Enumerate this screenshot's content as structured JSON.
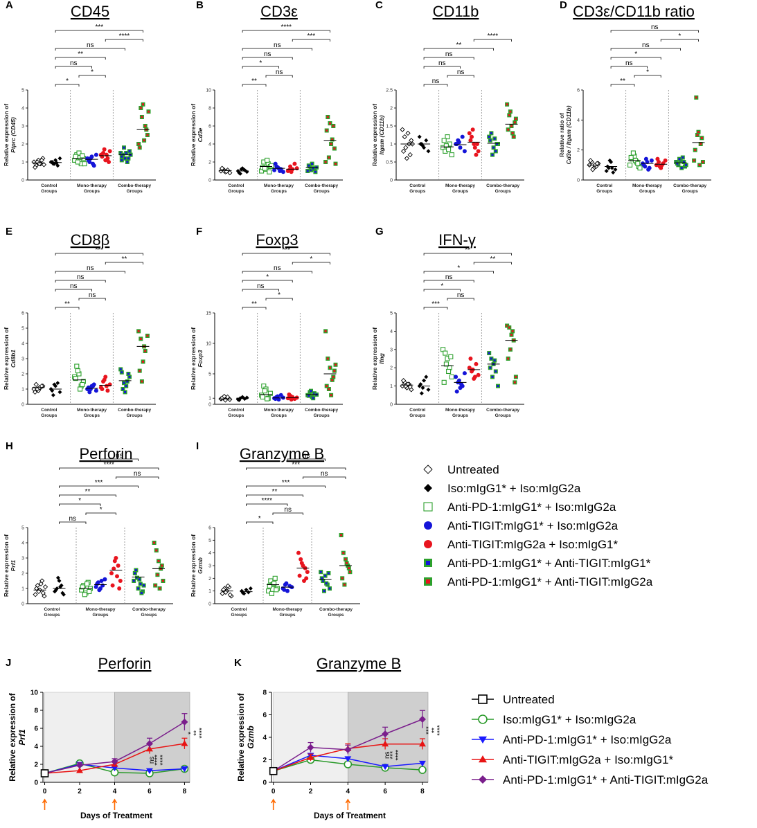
{
  "groups": [
    "Control Groups",
    "Mono-therapy Groups",
    "Combo-therapy Groups"
  ],
  "colors": {
    "untreated": "#000000",
    "iso": "#000000",
    "pd1": "#2ca02c",
    "tigitG1": "#1414d8",
    "tigitG2a": "#e8141e",
    "comboFill": "#2ca02c",
    "tcPd1": "#1a1aff",
    "tcTigit": "#e81414",
    "tcCombo": "#7a1e8c",
    "tcIso": "#2a9a2a"
  },
  "legend_scatter": [
    {
      "label": "Untreated",
      "icon": "open-diamond"
    },
    {
      "label": "Iso:mIgG1* + Iso:mIgG2a",
      "icon": "filled-diamond"
    },
    {
      "label": "Anti-PD-1:mIgG1* + Iso:mIgG2a",
      "icon": "open-green-square"
    },
    {
      "label": "Anti-TIGIT:mIgG1* + Iso:mIgG2a",
      "icon": "blue-circle"
    },
    {
      "label": "Anti-TIGIT:mIgG2a + Iso:mIgG1*",
      "icon": "red-circle"
    },
    {
      "label": "Anti-PD-1:mIgG1* + Anti-TIGIT:mIgG1*",
      "icon": "green-blue-square"
    },
    {
      "label": "Anti-PD-1:mIgG1* + Anti-TIGIT:mIgG2a",
      "icon": "green-red-square"
    }
  ],
  "legend_timecourse": [
    {
      "label": "Untreated",
      "icon": "open-square"
    },
    {
      "label": "Iso:mIgG1* + Iso:mIgG2a",
      "icon": "open-circle"
    },
    {
      "label": "Anti-PD-1:mIgG1* + Iso:mIgG2a",
      "icon": "down-triangle"
    },
    {
      "label": "Anti-TIGIT:mIgG2a + Iso:mIgG1*",
      "icon": "up-triangle"
    },
    {
      "label": "Anti-PD-1:mIgG1* + Anti-TIGIT:mIgG2a",
      "icon": "diamond"
    }
  ],
  "chart_data": [
    {
      "id": "A",
      "type": "scatter",
      "title": "CD45",
      "ylabel": [
        "Relative expression of",
        "Ptprc (CD45)"
      ],
      "ylim": [
        0,
        5
      ],
      "yticks": [
        0,
        1,
        2,
        3,
        4,
        5
      ],
      "means": [
        0.95,
        0.97,
        1.2,
        1.15,
        1.35,
        1.4,
        2.8
      ],
      "values": [
        [
          1.0,
          0.8,
          1.1,
          0.9,
          1.2,
          0.7,
          1.0,
          0.9,
          1.1,
          0.85
        ],
        [
          1.0,
          0.9,
          1.1,
          0.8,
          1.2,
          1.0,
          0.9,
          0.95
        ],
        [
          1.1,
          1.4,
          1.5,
          0.9,
          1.2,
          1.3,
          1.0,
          1.25,
          1.35,
          0.9
        ],
        [
          1.2,
          1.0,
          1.3,
          0.8,
          1.4,
          1.1,
          1.2,
          0.9
        ],
        [
          1.4,
          1.5,
          1.1,
          1.2,
          1.6,
          1.3,
          1.7,
          1.4,
          1.0
        ],
        [
          1.5,
          1.4,
          1.2,
          1.0,
          1.6,
          1.3,
          1.8,
          1.5,
          1.2,
          1.4,
          1.1
        ],
        [
          2.0,
          4.0,
          4.2,
          3.0,
          2.5,
          1.8,
          3.5,
          2.2,
          2.8,
          3.8
        ]
      ],
      "sig": [
        "*",
        "*",
        "ns",
        "**",
        "ns",
        "****",
        "***"
      ]
    },
    {
      "id": "B",
      "type": "scatter",
      "title": "CD3ε",
      "ylabel": [
        "Relative expression of",
        "Cd3e"
      ],
      "ylim": [
        0,
        10
      ],
      "yticks": [
        0,
        2,
        4,
        6,
        8,
        10
      ],
      "means": [
        1.05,
        1.0,
        1.5,
        1.3,
        1.2,
        1.4,
        4.4
      ],
      "values": [
        [
          1.0,
          1.2,
          0.9,
          1.1,
          0.8,
          1.3,
          1.0,
          0.95
        ],
        [
          1.0,
          0.7,
          1.3,
          1.1,
          0.9,
          0.8,
          1.2
        ],
        [
          1.0,
          2.0,
          1.2,
          1.8,
          1.5,
          1.4,
          1.3,
          2.2,
          0.9,
          1.6
        ],
        [
          1.1,
          1.5,
          1.3,
          1.2,
          0.9,
          1.8,
          1.4,
          1.0
        ],
        [
          1.0,
          1.5,
          1.2,
          1.8,
          1.3,
          1.1,
          0.9
        ],
        [
          1.0,
          1.5,
          1.8,
          1.2,
          1.4,
          1.6,
          1.1,
          1.3,
          0.9
        ],
        [
          2.0,
          7.0,
          6.3,
          4.5,
          3.5,
          5.5,
          2.5,
          4.0,
          6.0,
          1.8
        ]
      ],
      "sig": [
        "**",
        "ns",
        "*",
        "ns",
        "ns",
        "***",
        "****"
      ]
    },
    {
      "id": "C",
      "type": "scatter",
      "title": "CD11b",
      "ylabel": [
        "Relative expression of",
        "Itgam (CD11b)"
      ],
      "ylim": [
        0,
        2.5
      ],
      "yticks": [
        0,
        0.5,
        1.0,
        1.5,
        2.0,
        2.5
      ],
      "means": [
        1.0,
        1.0,
        0.92,
        0.98,
        1.05,
        1.02,
        1.55
      ],
      "values": [
        [
          1.4,
          1.2,
          0.6,
          1.0,
          1.1,
          0.8,
          0.9,
          1.3,
          0.7,
          1.0
        ],
        [
          1.2,
          1.0,
          0.9,
          1.1,
          0.8,
          1.0,
          0.95
        ],
        [
          0.9,
          0.8,
          1.2,
          1.0,
          0.7,
          1.1,
          0.95,
          0.85
        ],
        [
          1.0,
          1.1,
          0.9,
          1.2,
          0.8,
          1.0,
          1.05
        ],
        [
          1.3,
          1.2,
          1.0,
          0.7,
          0.8,
          1.1,
          1.4,
          0.9,
          1.0
        ],
        [
          1.2,
          1.3,
          0.9,
          0.8,
          1.0,
          1.1,
          0.7,
          1.15,
          1.0
        ],
        [
          2.1,
          1.8,
          1.5,
          1.2,
          1.7,
          1.4,
          1.9,
          1.3,
          1.6
        ]
      ],
      "sig": [
        "ns",
        "ns",
        "ns",
        "ns",
        "**",
        "****"
      ]
    },
    {
      "id": "D",
      "type": "scatter",
      "title": "CD3ε/CD11b ratio",
      "ylabel": [
        "Relative ratio of",
        "Cd3e / Itgam (CD11b)"
      ],
      "ylim": [
        0,
        6
      ],
      "yticks": [
        0,
        2,
        4,
        6
      ],
      "means": [
        1.0,
        0.9,
        1.3,
        1.1,
        1.05,
        1.15,
        2.5
      ],
      "values": [
        [
          1.0,
          1.2,
          0.8,
          0.9,
          1.1,
          1.3,
          0.7,
          1.0,
          1.1
        ],
        [
          0.6,
          0.8,
          1.2,
          0.5,
          0.7,
          0.9,
          1.3,
          0.8
        ],
        [
          1.0,
          1.4,
          1.6,
          1.2,
          0.9,
          1.5,
          1.8,
          1.3,
          1.1,
          0.8
        ],
        [
          1.1,
          0.9,
          1.2,
          0.8,
          1.3,
          1.0,
          1.4,
          0.7
        ],
        [
          1.0,
          1.2,
          0.8,
          1.1,
          1.3,
          1.4,
          0.9,
          1.0
        ],
        [
          1.2,
          1.0,
          1.3,
          1.5,
          0.9,
          1.1,
          1.4,
          0.8,
          1.2,
          1.0
        ],
        [
          1.3,
          5.5,
          3.2,
          2.4,
          1.2,
          2.0,
          3.0,
          1.0,
          2.8
        ]
      ],
      "sig": [
        "**",
        "*",
        "ns",
        "*",
        "ns",
        "*",
        "ns"
      ]
    },
    {
      "id": "E",
      "type": "scatter",
      "title": "CD8β",
      "ylabel": [
        "Relative expression of",
        "Cd8b1"
      ],
      "ylim": [
        0,
        6
      ],
      "yticks": [
        0,
        1,
        2,
        3,
        4,
        5,
        6
      ],
      "means": [
        1.1,
        1.0,
        1.6,
        1.05,
        1.25,
        1.55,
        3.8
      ],
      "values": [
        [
          1.0,
          1.3,
          0.9,
          1.1,
          1.2,
          0.8,
          1.0,
          1.1,
          1.2
        ],
        [
          1.0,
          0.6,
          1.2,
          1.4,
          0.8,
          0.9,
          1.3
        ],
        [
          1.8,
          2.5,
          2.0,
          1.2,
          1.5,
          1.7,
          2.2,
          1.0,
          1.3
        ],
        [
          1.0,
          0.8,
          1.2,
          1.3,
          0.9,
          1.1,
          1.0,
          1.2
        ],
        [
          1.1,
          1.5,
          1.8,
          0.9,
          1.3,
          1.0,
          1.6,
          1.2
        ],
        [
          2.3,
          1.0,
          0.8,
          1.5,
          1.8,
          2.1,
          1.4,
          1.2,
          2.0
        ],
        [
          4.8,
          4.3,
          2.8,
          3.5,
          4.5,
          2.2,
          1.5,
          3.8
        ]
      ],
      "sig": [
        "**",
        "ns",
        "ns",
        "ns",
        "ns",
        "**",
        "***"
      ]
    },
    {
      "id": "F",
      "type": "scatter",
      "title": "Foxp3",
      "ylabel": [
        "Relative expression of",
        "Foxp3"
      ],
      "ylim": [
        0,
        15
      ],
      "yticks": [
        0,
        1,
        5,
        10,
        15
      ],
      "means": [
        0.9,
        1.0,
        1.6,
        1.05,
        1.1,
        1.6,
        5.0
      ],
      "values": [
        [
          0.9,
          1.1,
          0.7,
          1.2,
          0.8,
          1.0,
          1.3
        ],
        [
          0.8,
          1.0,
          1.2,
          0.9,
          1.1,
          0.7
        ],
        [
          1.5,
          3.0,
          2.5,
          1.0,
          1.8,
          1.2,
          2.2,
          0.9
        ],
        [
          1.0,
          1.2,
          0.8,
          1.5,
          1.1,
          0.9,
          1.3
        ],
        [
          1.0,
          1.4,
          1.2,
          0.9,
          1.1,
          1.6,
          0.8
        ],
        [
          1.5,
          2.0,
          1.2,
          1.8,
          1.6,
          1.4,
          2.2,
          1.0
        ],
        [
          12.0,
          7.5,
          6.0,
          4.0,
          5.5,
          3.0,
          2.5,
          1.5,
          4.5,
          6.5
        ]
      ],
      "sig": [
        "**",
        "*",
        "ns",
        "*",
        "ns",
        "*",
        "***"
      ]
    },
    {
      "id": "G",
      "type": "scatter",
      "title": "IFN-γ",
      "ylabel": [
        "Relative expression of",
        "Ifng"
      ],
      "ylim": [
        0,
        5
      ],
      "yticks": [
        0,
        1,
        2,
        3,
        4,
        5
      ],
      "means": [
        1.05,
        1.0,
        2.1,
        1.2,
        1.9,
        2.2,
        3.5
      ],
      "values": [
        [
          1.0,
          1.2,
          0.9,
          1.1,
          0.8,
          1.3,
          1.0,
          1.1,
          0.95
        ],
        [
          1.0,
          0.6,
          1.3,
          1.5,
          0.8,
          1.1,
          0.9
        ],
        [
          3.0,
          2.8,
          2.5,
          2.0,
          1.5,
          1.2,
          2.2,
          1.8,
          2.6
        ],
        [
          1.5,
          1.2,
          0.9,
          1.0,
          1.7,
          0.7,
          1.3,
          1.1
        ],
        [
          2.0,
          1.8,
          1.4,
          2.2,
          1.6,
          2.5,
          1.9,
          1.5
        ],
        [
          2.8,
          2.5,
          2.2,
          1.8,
          1.0,
          2.0,
          1.5,
          2.4
        ],
        [
          4.3,
          4.2,
          3.8,
          3.5,
          1.5,
          2.5,
          3.0,
          4.0,
          1.2
        ]
      ],
      "sig": [
        "***",
        "ns",
        "*",
        "ns",
        "*",
        "**",
        "**"
      ]
    },
    {
      "id": "H",
      "type": "scatter",
      "title": "Perforin",
      "ylabel": [
        "Relative expression of",
        "Prf1"
      ],
      "ylim": [
        0,
        5
      ],
      "yticks": [
        0,
        1,
        2,
        3,
        4,
        5
      ],
      "means": [
        0.9,
        1.0,
        1.0,
        1.25,
        2.2,
        1.75,
        2.3
      ],
      "values": [
        [
          0.6,
          1.2,
          0.9,
          1.5,
          0.5,
          1.0,
          0.8,
          1.3,
          0.7,
          1.1
        ],
        [
          0.8,
          1.0,
          1.5,
          1.2,
          0.6,
          0.9,
          1.7,
          1.1,
          0.7
        ],
        [
          0.9,
          1.2,
          0.7,
          1.4,
          1.0,
          1.1,
          0.6,
          1.3,
          0.8
        ],
        [
          1.1,
          1.4,
          1.0,
          1.2,
          1.6,
          1.3,
          0.9,
          1.5
        ],
        [
          2.0,
          2.3,
          3.0,
          2.5,
          1.5,
          1.2,
          2.8,
          1.8,
          1.0
        ],
        [
          1.5,
          2.2,
          1.0,
          1.3,
          0.8,
          2.0,
          1.7,
          1.6,
          0.7,
          1.2
        ],
        [
          4.0,
          3.5,
          2.8,
          2.3,
          1.5,
          1.2,
          1.9,
          1.0,
          2.5
        ]
      ],
      "sig": [
        "ns",
        "*",
        "*",
        "**",
        "***",
        "ns",
        "****",
        "ns"
      ]
    },
    {
      "id": "I",
      "type": "scatter",
      "title": "Granzyme B",
      "ylabel": [
        "Relative expression of",
        "Gzmb"
      ],
      "ylim": [
        0,
        6
      ],
      "yticks": [
        0,
        1,
        2,
        3,
        4,
        5,
        6
      ],
      "means": [
        1.0,
        0.95,
        1.5,
        1.3,
        2.8,
        1.9,
        3.0
      ],
      "values": [
        [
          0.8,
          1.2,
          1.0,
          1.3,
          0.6,
          1.1,
          0.9,
          1.4,
          0.7
        ],
        [
          1.0,
          0.8,
          1.1,
          0.9,
          1.2,
          0.85
        ],
        [
          1.0,
          1.8,
          1.5,
          2.0,
          1.2,
          1.4,
          0.8,
          1.6,
          1.1
        ],
        [
          1.2,
          1.5,
          1.0,
          1.4,
          1.3,
          1.1,
          1.6
        ],
        [
          4.0,
          3.5,
          3.0,
          2.8,
          2.5,
          2.2,
          3.2,
          1.8,
          2.0
        ],
        [
          2.5,
          1.8,
          2.2,
          1.5,
          1.2,
          2.0,
          1.0,
          1.6,
          2.4
        ],
        [
          5.4,
          4.0,
          3.5,
          3.0,
          2.5,
          2.0,
          1.5,
          3.2,
          2.8
        ]
      ],
      "sig": [
        "*",
        "ns",
        "****",
        "**",
        "***",
        "ns",
        "***",
        "ns"
      ]
    },
    {
      "id": "J",
      "type": "line",
      "title": "Perforin",
      "xlabel": "Days of  Treatment",
      "ylabel": [
        "Relative expression of",
        "Prf1"
      ],
      "x": [
        0,
        2,
        4,
        6,
        8
      ],
      "ylim": [
        0,
        10
      ],
      "yticks": [
        0,
        2,
        4,
        6,
        8,
        10
      ],
      "xticks": [
        0,
        2,
        4,
        6,
        8
      ],
      "series": [
        {
          "name": "Untreated",
          "values": [
            1.0,
            null,
            null,
            null,
            null
          ]
        },
        {
          "name": "Iso:mIgG1* + Iso:mIgG2a",
          "values": [
            1.0,
            2.1,
            1.1,
            1.0,
            1.5
          ]
        },
        {
          "name": "Anti-PD-1:mIgG1* + Iso:mIgG2a",
          "values": [
            1.0,
            2.0,
            1.6,
            1.3,
            1.5
          ]
        },
        {
          "name": "Anti-TIGIT:mIgG2a + Iso:mIgG1*",
          "values": [
            1.0,
            1.3,
            2.0,
            3.7,
            4.3
          ]
        },
        {
          "name": "Anti-PD-1:mIgG1* + Anti-TIGIT:mIgG2a",
          "values": [
            1.0,
            1.9,
            2.3,
            4.3,
            6.7
          ]
        }
      ],
      "annotations": [
        "ns",
        "****",
        "****",
        "*",
        "**",
        "****"
      ]
    },
    {
      "id": "K",
      "type": "line",
      "title": "Granzyme B",
      "xlabel": "Days of  Treatment",
      "ylabel": [
        "Relative expression of",
        "Gzmb"
      ],
      "x": [
        0,
        2,
        4,
        6,
        8
      ],
      "ylim": [
        0,
        8
      ],
      "yticks": [
        0,
        2,
        4,
        6,
        8
      ],
      "xticks": [
        0,
        2,
        4,
        6,
        8
      ],
      "series": [
        {
          "name": "Untreated",
          "values": [
            1.0,
            null,
            null,
            null,
            null
          ]
        },
        {
          "name": "Iso:mIgG1* + Iso:mIgG2a",
          "values": [
            1.0,
            2.0,
            1.6,
            1.3,
            1.1
          ]
        },
        {
          "name": "Anti-PD-1:mIgG1* + Iso:mIgG2a",
          "values": [
            1.0,
            2.4,
            2.1,
            1.4,
            1.7
          ]
        },
        {
          "name": "Anti-TIGIT:mIgG2a + Iso:mIgG1*",
          "values": [
            1.0,
            2.2,
            3.0,
            3.4,
            3.4
          ]
        },
        {
          "name": "Anti-PD-1:mIgG1* + Anti-TIGIT:mIgG2a",
          "values": [
            1.0,
            3.1,
            2.9,
            4.3,
            5.6
          ]
        }
      ],
      "annotations": [
        "ns",
        "***",
        "****",
        "***",
        "**",
        "****"
      ]
    }
  ]
}
